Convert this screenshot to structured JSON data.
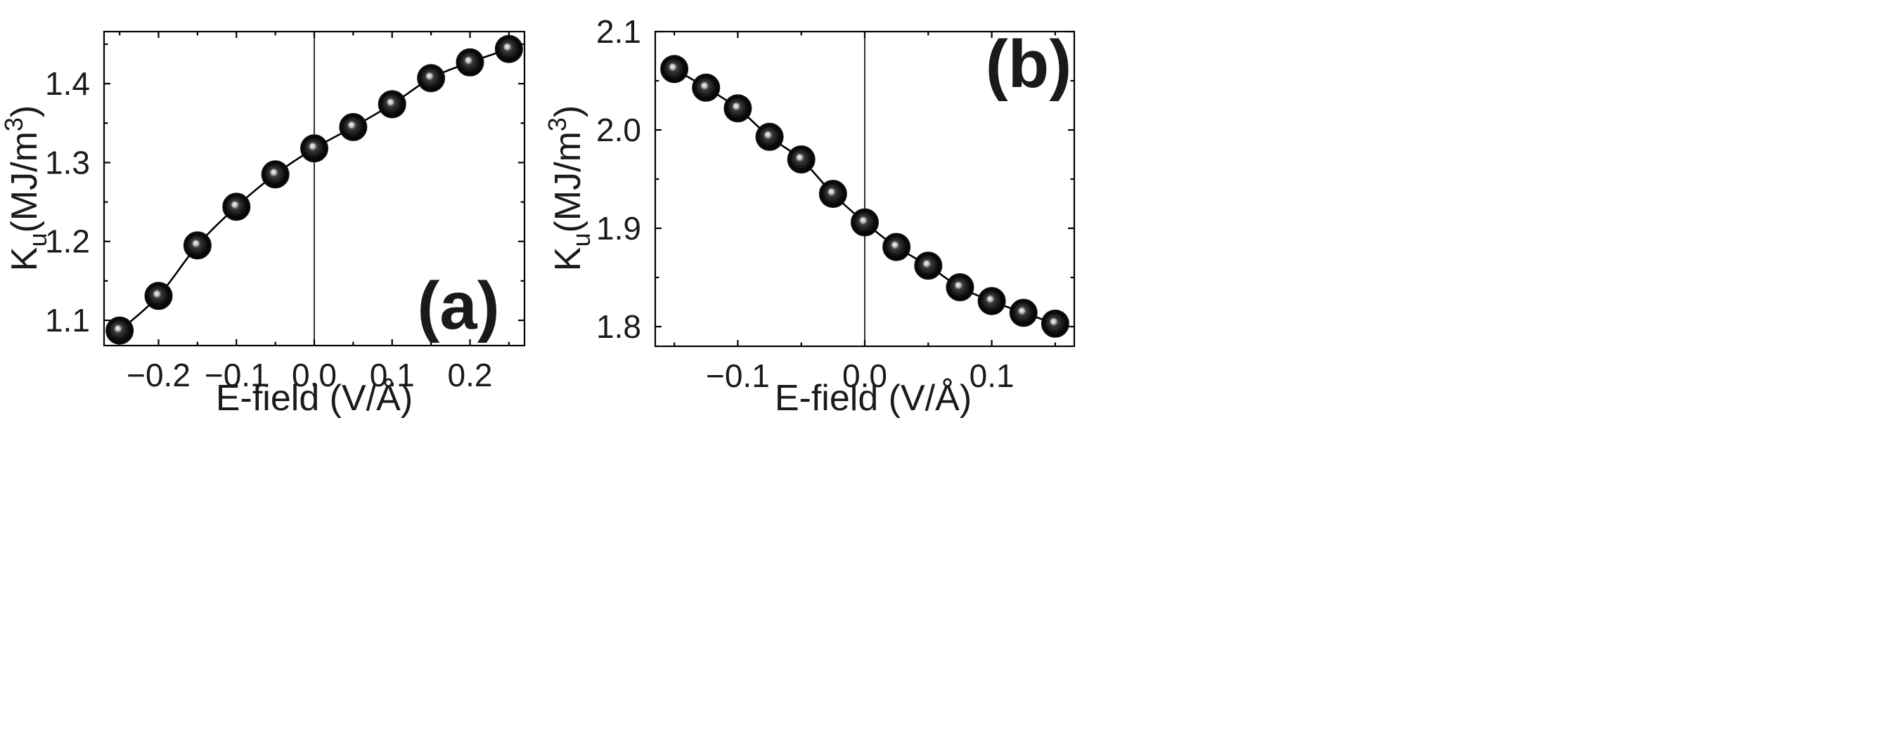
{
  "figure": {
    "background": "#ffffff"
  },
  "chart_data": [
    {
      "panel": "(a)",
      "type": "scatter",
      "with_fit_line": true,
      "xlabel": "E-field (V/Å)",
      "ylabel": {
        "main": "K",
        "subscript": "u",
        "unit_prefix": "(MJ/m",
        "unit_sup": "3",
        "unit_suffix": ")"
      },
      "xlim": [
        -0.27,
        0.27
      ],
      "ylim": [
        1.068,
        1.466
      ],
      "xticks": [
        -0.2,
        -0.1,
        0.0,
        0.1,
        0.2
      ],
      "xtick_labels": [
        "−0.2",
        "−0.1",
        "0.0",
        "0.1",
        "0.2"
      ],
      "yticks": [
        1.1,
        1.2,
        1.3,
        1.4
      ],
      "ytick_labels": [
        "1.1",
        "1.2",
        "1.3",
        "1.4"
      ],
      "zero_line_x": 0.0,
      "x": [
        -0.25,
        -0.2,
        -0.15,
        -0.1,
        -0.05,
        0.0,
        0.05,
        0.1,
        0.15,
        0.2,
        0.25
      ],
      "y": [
        1.087,
        1.131,
        1.195,
        1.244,
        1.285,
        1.318,
        1.345,
        1.374,
        1.407,
        1.427,
        1.444
      ],
      "legend": "none",
      "label_position": "bottom-right",
      "marker_color": "#111111"
    },
    {
      "panel": "(b)",
      "type": "scatter",
      "with_fit_line": true,
      "xlabel": "E-field (V/Å)",
      "ylabel": {
        "main": "K",
        "subscript": "u",
        "unit_prefix": "(MJ/m",
        "unit_sup": "3",
        "unit_suffix": ")"
      },
      "xlim": [
        -0.165,
        0.165
      ],
      "ylim": [
        1.78,
        2.1
      ],
      "xticks": [
        -0.1,
        0.0,
        0.1
      ],
      "xtick_labels": [
        "−0.1",
        "0.0",
        "0.1"
      ],
      "yticks": [
        1.8,
        1.9,
        2.0,
        2.1
      ],
      "ytick_labels": [
        "1.8",
        "1.9",
        "2.0",
        "2.1"
      ],
      "zero_line_x": 0.0,
      "x": [
        -0.15,
        -0.125,
        -0.1,
        -0.075,
        -0.05,
        -0.025,
        0.0,
        0.025,
        0.05,
        0.075,
        0.1,
        0.125,
        0.15
      ],
      "y": [
        2.062,
        2.043,
        2.022,
        1.993,
        1.97,
        1.935,
        1.906,
        1.881,
        1.862,
        1.84,
        1.826,
        1.814,
        1.803
      ],
      "legend": "none",
      "label_position": "top-right",
      "marker_color": "#111111"
    }
  ]
}
